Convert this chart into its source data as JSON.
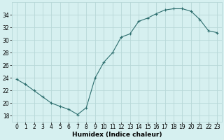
{
  "x": [
    0,
    1,
    2,
    3,
    4,
    5,
    6,
    7,
    8,
    9,
    10,
    11,
    12,
    13,
    14,
    15,
    16,
    17,
    18,
    19,
    20,
    21,
    22,
    23
  ],
  "y": [
    23.8,
    23.0,
    22.0,
    21.0,
    20.0,
    19.5,
    19.0,
    18.2,
    19.3,
    24.0,
    26.5,
    28.0,
    30.5,
    31.0,
    33.0,
    33.5,
    34.2,
    34.8,
    35.0,
    35.0,
    34.6,
    33.3,
    31.5,
    31.2
  ],
  "line_color": "#2d6e6e",
  "marker": "+",
  "bg_color": "#d6f0f0",
  "grid_color": "#b8d8d8",
  "xlabel": "Humidex (Indice chaleur)",
  "xlim": [
    -0.5,
    23.5
  ],
  "ylim": [
    17,
    36
  ],
  "yticks": [
    18,
    20,
    22,
    24,
    26,
    28,
    30,
    32,
    34
  ],
  "xtick_labels": [
    "0",
    "1",
    "2",
    "3",
    "4",
    "5",
    "6",
    "7",
    "8",
    "9",
    "10",
    "11",
    "12",
    "13",
    "14",
    "15",
    "16",
    "17",
    "18",
    "19",
    "20",
    "21",
    "22",
    "23"
  ],
  "tick_fontsize": 5.5,
  "label_fontsize": 6.5
}
